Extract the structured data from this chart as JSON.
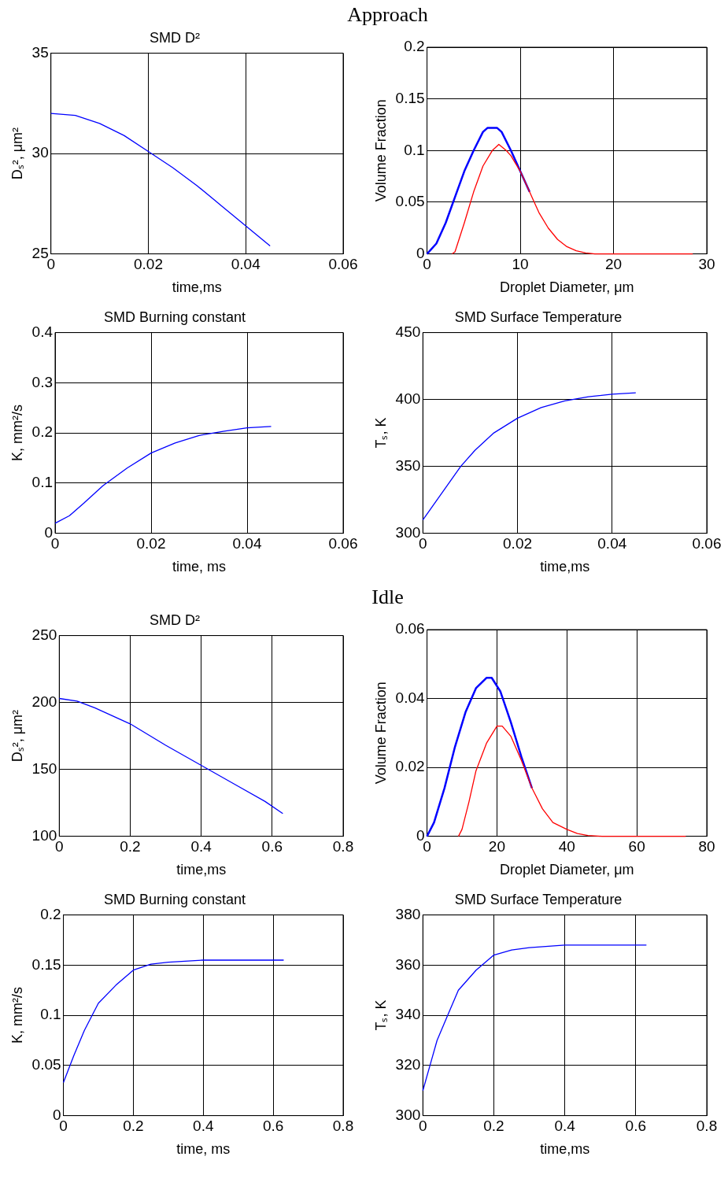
{
  "chart_data": [
    {
      "type": "line",
      "annotations": [
        "Approach"
      ],
      "title": "SMD D²",
      "xlabel": "time,ms",
      "ylabel": "Dₛ², μm²",
      "xlim": [
        0,
        0.06
      ],
      "xticks": [
        0,
        0.02,
        0.04,
        0.06
      ],
      "ylim": [
        25,
        35
      ],
      "yticks": [
        25,
        30,
        35
      ],
      "grid": true,
      "marker": "none",
      "x": [
        0,
        0.005,
        0.01,
        0.015,
        0.02,
        0.025,
        0.03,
        0.035,
        0.04,
        0.045
      ],
      "series": [
        {
          "color": "#0000ff",
          "values": [
            32,
            31.9,
            31.5,
            30.9,
            30.1,
            29.3,
            28.4,
            27.4,
            26.4,
            25.4
          ]
        }
      ]
    },
    {
      "type": "line",
      "xlabel": "Droplet Diameter, μm",
      "ylabel": "Volume Fraction",
      "xlim": [
        0,
        30
      ],
      "xticks": [
        0,
        10,
        20,
        30
      ],
      "ylim": [
        0,
        0.2
      ],
      "yticks": [
        0,
        0.05,
        0.1,
        0.15,
        0.2
      ],
      "grid": true,
      "marker": "none",
      "series": [
        {
          "color": "#0000ff",
          "x": [
            0,
            1,
            2,
            3,
            4,
            5,
            6,
            6.5,
            7.5,
            8,
            9,
            10,
            11
          ],
          "values": [
            0,
            0.01,
            0.03,
            0.055,
            0.08,
            0.1,
            0.118,
            0.122,
            0.122,
            0.118,
            0.1,
            0.08,
            0.06
          ]
        },
        {
          "color": "#ff0000",
          "x": [
            2.7,
            3,
            4,
            5,
            6,
            7,
            7.7,
            8.5,
            9,
            10,
            11,
            12,
            13,
            14,
            15,
            16,
            17,
            18,
            28.5
          ],
          "values": [
            0,
            0.002,
            0.03,
            0.06,
            0.085,
            0.1,
            0.106,
            0.1,
            0.095,
            0.08,
            0.06,
            0.04,
            0.025,
            0.014,
            0.007,
            0.003,
            0.001,
            0,
            0
          ]
        }
      ]
    },
    {
      "type": "line",
      "title": "SMD Burning constant",
      "xlabel": "time, ms",
      "ylabel": "K, mm²/s",
      "xlim": [
        0,
        0.06
      ],
      "xticks": [
        0,
        0.02,
        0.04,
        0.06
      ],
      "ylim": [
        0,
        0.4
      ],
      "yticks": [
        0,
        0.1,
        0.2,
        0.3,
        0.4
      ],
      "grid": true,
      "marker": "none",
      "x": [
        0,
        0.003,
        0.006,
        0.01,
        0.015,
        0.02,
        0.025,
        0.03,
        0.035,
        0.04,
        0.045
      ],
      "series": [
        {
          "color": "#0000ff",
          "values": [
            0.02,
            0.035,
            0.06,
            0.095,
            0.13,
            0.16,
            0.18,
            0.195,
            0.203,
            0.21,
            0.213
          ]
        }
      ]
    },
    {
      "type": "line",
      "title": "SMD Surface Temperature",
      "xlabel": "time,ms",
      "ylabel": "Tₛ, K",
      "xlim": [
        0,
        0.06
      ],
      "xticks": [
        0,
        0.02,
        0.04,
        0.06
      ],
      "ylim": [
        300,
        450
      ],
      "yticks": [
        300,
        350,
        400,
        450
      ],
      "grid": true,
      "marker": "none",
      "x": [
        0,
        0.002,
        0.005,
        0.008,
        0.011,
        0.015,
        0.02,
        0.025,
        0.03,
        0.035,
        0.04,
        0.045
      ],
      "series": [
        {
          "color": "#0000ff",
          "values": [
            310,
            320,
            335,
            350,
            362,
            375,
            386,
            394,
            399,
            402,
            404,
            405
          ]
        }
      ]
    },
    {
      "type": "line",
      "annotations": [
        "Idle"
      ],
      "title": "SMD D²",
      "xlabel": "time,ms",
      "ylabel": "Dₛ², μm²",
      "xlim": [
        0,
        0.8
      ],
      "xticks": [
        0,
        0.2,
        0.4,
        0.6,
        0.8
      ],
      "ylim": [
        100,
        250
      ],
      "yticks": [
        100,
        150,
        200,
        250
      ],
      "grid": true,
      "marker": "none",
      "x": [
        0,
        0.05,
        0.1,
        0.2,
        0.3,
        0.4,
        0.5,
        0.58,
        0.63
      ],
      "series": [
        {
          "color": "#0000ff",
          "values": [
            203,
            201,
            196,
            184,
            168,
            153,
            138,
            126,
            117
          ]
        }
      ]
    },
    {
      "type": "line",
      "xlabel": "Droplet Diameter, μm",
      "ylabel": "Volume Fraction",
      "xlim": [
        0,
        80
      ],
      "xticks": [
        0,
        20,
        40,
        60,
        80
      ],
      "ylim": [
        0,
        0.06
      ],
      "yticks": [
        0,
        0.02,
        0.04,
        0.06
      ],
      "grid": true,
      "marker": "none",
      "series": [
        {
          "color": "#0000ff",
          "x": [
            0,
            2,
            5,
            8,
            11,
            14,
            17,
            18.5,
            21,
            24,
            27,
            30
          ],
          "values": [
            0,
            0.004,
            0.014,
            0.026,
            0.036,
            0.043,
            0.046,
            0.046,
            0.042,
            0.033,
            0.023,
            0.014
          ]
        },
        {
          "color": "#ff0000",
          "x": [
            9,
            10,
            12,
            14,
            17,
            20,
            21.5,
            24,
            27,
            30,
            33,
            36,
            40,
            43,
            46,
            50,
            74
          ],
          "values": [
            0,
            0.002,
            0.01,
            0.019,
            0.027,
            0.032,
            0.032,
            0.029,
            0.022,
            0.014,
            0.008,
            0.004,
            0.002,
            0.0008,
            0.0002,
            0,
            0
          ]
        }
      ]
    },
    {
      "type": "line",
      "title": "SMD Burning constant",
      "xlabel": "time, ms",
      "ylabel": "K, mm²/s",
      "xlim": [
        0,
        0.8
      ],
      "xticks": [
        0,
        0.2,
        0.4,
        0.6,
        0.8
      ],
      "ylim": [
        0,
        0.2
      ],
      "yticks": [
        0,
        0.05,
        0.1,
        0.15,
        0.2
      ],
      "grid": true,
      "marker": "none",
      "x": [
        0,
        0.03,
        0.06,
        0.1,
        0.15,
        0.2,
        0.25,
        0.3,
        0.4,
        0.63
      ],
      "series": [
        {
          "color": "#0000ff",
          "values": [
            0.033,
            0.06,
            0.085,
            0.112,
            0.13,
            0.145,
            0.151,
            0.153,
            0.155,
            0.155
          ]
        }
      ]
    },
    {
      "type": "line",
      "title": "SMD Surface Temperature",
      "xlabel": "time,ms",
      "ylabel": "Tₛ, K",
      "xlim": [
        0,
        0.8
      ],
      "xticks": [
        0,
        0.2,
        0.4,
        0.6,
        0.8
      ],
      "ylim": [
        300,
        380
      ],
      "yticks": [
        300,
        320,
        340,
        360,
        380
      ],
      "grid": true,
      "marker": "none",
      "x": [
        0,
        0.02,
        0.04,
        0.07,
        0.1,
        0.15,
        0.2,
        0.25,
        0.3,
        0.4,
        0.63
      ],
      "series": [
        {
          "color": "#0000ff",
          "values": [
            310,
            320,
            330,
            340,
            350,
            358,
            364,
            366,
            367,
            368,
            368
          ]
        }
      ]
    }
  ]
}
